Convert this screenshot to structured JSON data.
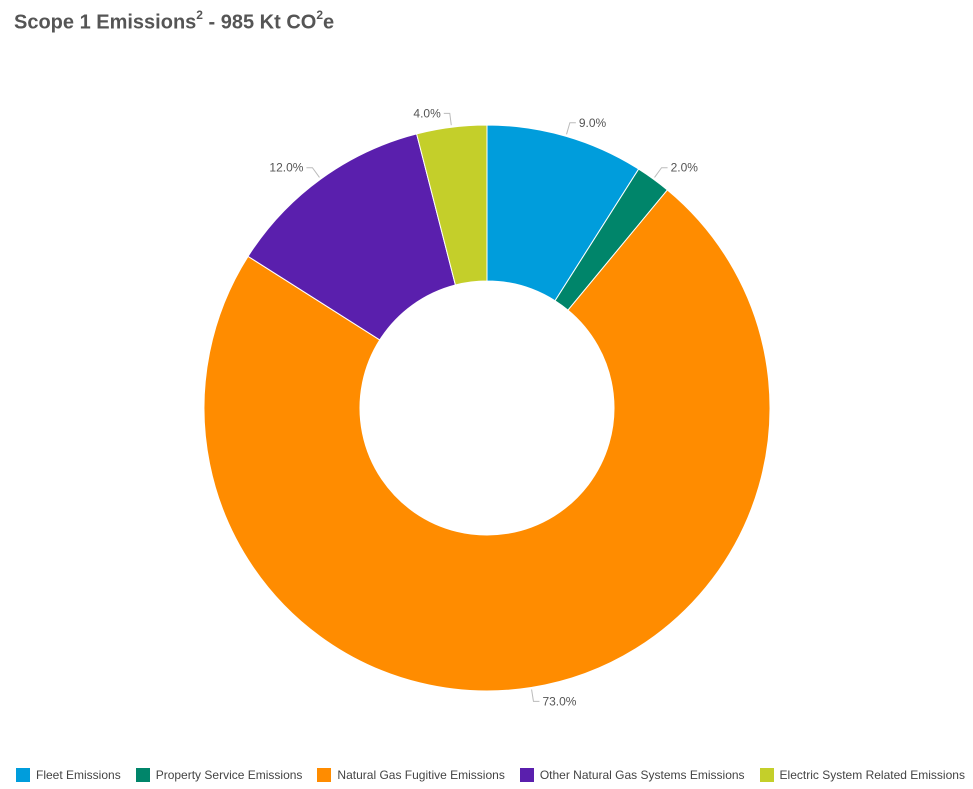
{
  "title": {
    "main": "Scope 1 Emissions",
    "sup1": "2",
    "middle": " - 985 Kt CO",
    "sup2": "2",
    "end": "e"
  },
  "chart_data": {
    "type": "pie",
    "donut": true,
    "categories": [
      "Fleet Emissions",
      "Property Service Emissions",
      "Natural Gas Fugitive Emissions",
      "Other Natural Gas Systems Emissions",
      "Electric System Related Emissions"
    ],
    "values": [
      9.0,
      2.0,
      73.0,
      12.0,
      4.0
    ],
    "data_labels": [
      "9.0%",
      "2.0%",
      "73.0%",
      "12.0%",
      "4.0%"
    ],
    "colors": [
      "#009ddc",
      "#00856a",
      "#ff8c00",
      "#5a1fad",
      "#c4cf2a"
    ],
    "legend_position": "bottom"
  }
}
